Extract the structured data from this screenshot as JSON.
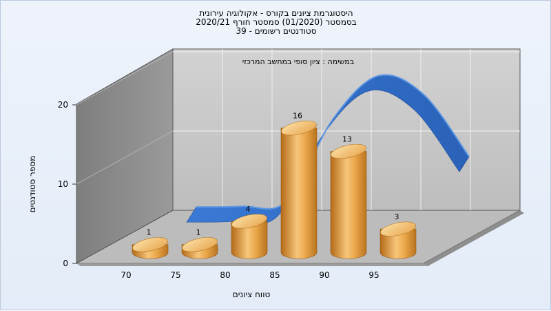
{
  "chart_data": {
    "type": "bar",
    "title_lines": [
      "היסטוגרמת ציונים בקורס - אקולוגיה עירונית",
      "בסמסטר (01/2020) סמסטר חורף 2020/21",
      "סטודנטים רשומים - 39"
    ],
    "subtitle": "במשימה : ציון סופי במחשב המרכזי",
    "xlabel": "טווח ציונים",
    "ylabel": "מספר סטודנטים",
    "x_ticks": [
      "70",
      "75",
      "80",
      "85",
      "90",
      "95"
    ],
    "y_ticks": [
      "0",
      "10",
      "20"
    ],
    "ylim": [
      0,
      20
    ],
    "values": [
      1,
      1,
      4,
      16,
      13,
      3
    ],
    "data_labels": [
      "1",
      "1",
      "4",
      "16",
      "13",
      "3"
    ],
    "curve_values": [
      0.4,
      0.5,
      1.3,
      13.6,
      20.2,
      17.4,
      8.0
    ],
    "grid": true,
    "colors": {
      "bar": "#e8a040",
      "bar_dark": "#b06a18",
      "bar_light": "#f9d58e",
      "curve": "#2f6cc4",
      "curve_light": "#4a88dc",
      "back_wall": "#c6c6c6",
      "left_wall": "#8c8c8c",
      "floor": "#bdbdbd"
    }
  }
}
